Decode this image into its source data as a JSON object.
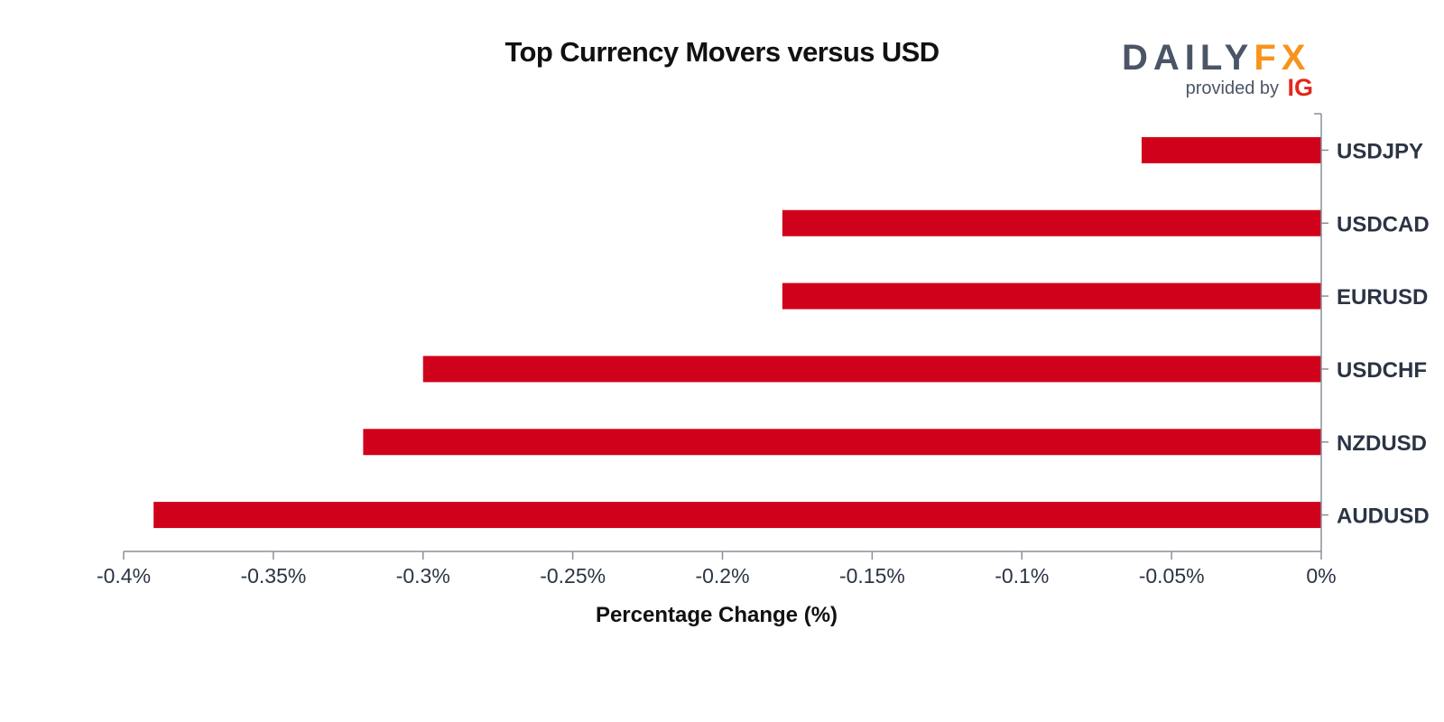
{
  "chart_data": {
    "type": "bar",
    "orientation": "horizontal",
    "title": "Top Currency Movers versus USD",
    "xlabel": "Percentage Change (%)",
    "ylabel": "",
    "categories": [
      "USDJPY",
      "USDCAD",
      "EURUSD",
      "USDCHF",
      "NZDUSD",
      "AUDUSD"
    ],
    "values": [
      -0.06,
      -0.18,
      -0.18,
      -0.3,
      -0.32,
      -0.39
    ],
    "xlim": [
      -0.4,
      0
    ],
    "xticks": [
      -0.4,
      -0.35,
      -0.3,
      -0.25,
      -0.2,
      -0.15,
      -0.1,
      -0.05,
      0
    ],
    "xtick_labels": [
      "-0.4%",
      "-0.35%",
      "-0.3%",
      "-0.25%",
      "-0.2%",
      "-0.15%",
      "-0.1%",
      "-0.05%",
      "0%"
    ],
    "grid": false,
    "legend": "none",
    "category_axis_position": "right",
    "bar_color": "#d0021b",
    "axis_color": "#8a8f99",
    "text_color": "#2b3444"
  },
  "branding": {
    "brand_main": "DAILY",
    "brand_accent": "FX",
    "provided_by": "provided by",
    "ig": "IG",
    "main_color": "#4a5565",
    "accent_color": "#f7941d",
    "ig_color": "#e4261c"
  }
}
